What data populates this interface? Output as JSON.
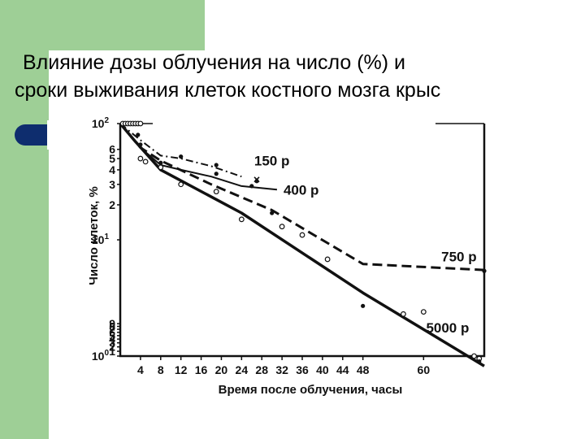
{
  "slide": {
    "title_line1": "Влияние дозы облучения на число (%) и",
    "title_line2": "сроки выживания клеток костного мозга крыс"
  },
  "colors": {
    "accent_green": "#9ecf96",
    "bullet_navy": "#0e2d6e"
  },
  "chart_data": {
    "type": "line",
    "xlabel": "Время после облучения, часы",
    "ylabel": "Число клеток, %",
    "y_scale": "log",
    "xlim": [
      0,
      72
    ],
    "ylim": [
      1,
      100
    ],
    "x_ticks": [
      {
        "v": 4,
        "label": "4"
      },
      {
        "v": 8,
        "label": "8"
      },
      {
        "v": 12,
        "label": "12"
      },
      {
        "v": 16,
        "label": "16"
      },
      {
        "v": 20,
        "label": "20"
      },
      {
        "v": 24,
        "label": "24"
      },
      {
        "v": 28,
        "label": "28"
      },
      {
        "v": 32,
        "label": "32"
      },
      {
        "v": 36,
        "label": "36"
      },
      {
        "v": 40,
        "label": "40"
      },
      {
        "v": 44,
        "label": "44"
      },
      {
        "v": 48,
        "label": "48"
      },
      {
        "v": 60,
        "label": "60"
      }
    ],
    "y_ticks": [
      {
        "v": 1,
        "base": "10",
        "exp": "0"
      },
      {
        "v": 1.1,
        "label": "1"
      },
      {
        "v": 1.2,
        "label": "2"
      },
      {
        "v": 1.3,
        "label": "3"
      },
      {
        "v": 1.4,
        "label": "4"
      },
      {
        "v": 1.5,
        "label": "5"
      },
      {
        "v": 1.6,
        "label": "6"
      },
      {
        "v": 1.7,
        "label": "7"
      },
      {
        "v": 1.8,
        "label": "8"
      },
      {
        "v": 1.9,
        "label": "9"
      },
      {
        "v": 10,
        "base": "10",
        "exp": "1"
      },
      {
        "v": 20,
        "label": "2"
      },
      {
        "v": 30,
        "label": "3"
      },
      {
        "v": 40,
        "label": "4"
      },
      {
        "v": 50,
        "label": "5"
      },
      {
        "v": 60,
        "label": "6"
      },
      {
        "v": 100,
        "base": "10",
        "exp": "2"
      }
    ],
    "series": [
      {
        "name": "150 р",
        "style": "dashdot",
        "x": [
          0,
          4,
          8,
          12,
          18,
          24
        ],
        "y": [
          100,
          72,
          53,
          50,
          43,
          35
        ]
      },
      {
        "name": "400 р",
        "style": "solid",
        "x": [
          0,
          4,
          8,
          12,
          18,
          24,
          31
        ],
        "y": [
          100,
          62,
          44,
          40,
          35,
          29,
          27
        ]
      },
      {
        "name": "750 р",
        "style": "dashed",
        "x": [
          0,
          4,
          8,
          18,
          30,
          48,
          72
        ],
        "y": [
          100,
          62,
          48,
          30,
          18,
          6.2,
          5.5
        ]
      },
      {
        "name": "5000 р",
        "style": "solid",
        "x": [
          0,
          3,
          8,
          24,
          48,
          72
        ],
        "y": [
          100,
          70,
          40,
          17,
          3.5,
          0.82
        ]
      }
    ],
    "markers": {
      "open": [
        [
          0.5,
          100
        ],
        [
          1,
          100
        ],
        [
          1.5,
          100
        ],
        [
          2,
          100
        ],
        [
          2.5,
          100
        ],
        [
          3,
          100
        ],
        [
          3.5,
          100
        ],
        [
          4,
          100
        ],
        [
          4,
          50
        ],
        [
          5,
          47
        ],
        [
          8,
          42
        ],
        [
          12,
          30
        ],
        [
          19,
          26
        ],
        [
          24,
          15
        ],
        [
          32,
          13
        ],
        [
          36,
          11
        ],
        [
          41,
          6.8
        ],
        [
          56,
          2.3
        ],
        [
          60,
          2.4
        ],
        [
          70,
          1.0
        ],
        [
          71,
          0.95
        ]
      ],
      "filled": [
        [
          3.5,
          80
        ],
        [
          4,
          66
        ],
        [
          8,
          46
        ],
        [
          12,
          52
        ],
        [
          19,
          44
        ],
        [
          19,
          37
        ],
        [
          27,
          32
        ],
        [
          26,
          29
        ],
        [
          30,
          17
        ],
        [
          48,
          2.7
        ],
        [
          71,
          0.9
        ],
        [
          72,
          5.4
        ]
      ],
      "cross": [
        [
          27,
          33
        ]
      ]
    }
  }
}
